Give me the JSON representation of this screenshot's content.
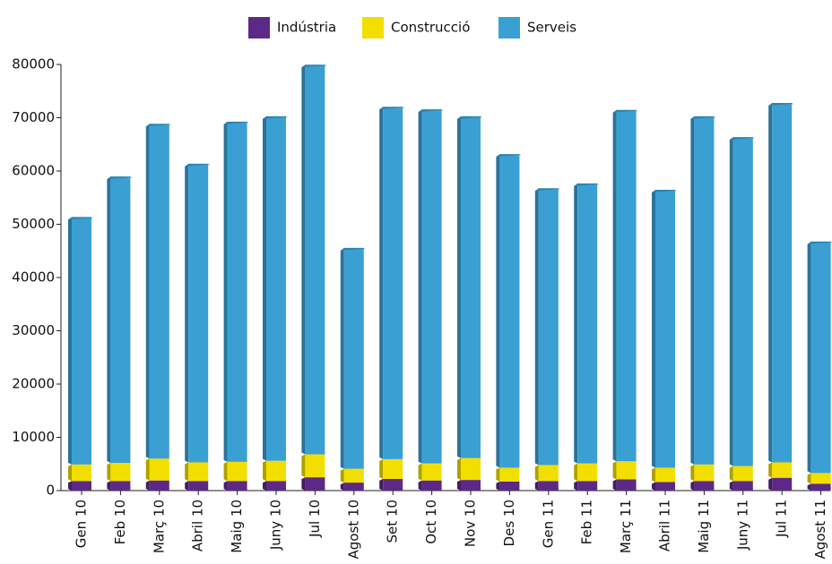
{
  "chart_data": {
    "type": "stacked-bar",
    "categories": [
      "Gen 10",
      "Feb 10",
      "Març 10",
      "Abril 10",
      "Maig 10",
      "Juny 10",
      "Jul 10",
      "Agost 10",
      "Set 10",
      "Oct 10",
      "Nov 10",
      "Des 10",
      "Gen 11",
      "Feb 11",
      "Març 11",
      "Abril 11",
      "Maig 11",
      "Juny 11",
      "Jul 11",
      "Agost 11"
    ],
    "series": [
      {
        "name": "Indústria",
        "color": "#5c2a86",
        "values": [
          1800,
          1800,
          1900,
          1800,
          1800,
          1800,
          2500,
          1500,
          2200,
          1900,
          2000,
          1700,
          1800,
          1800,
          2100,
          1600,
          1800,
          1800,
          2400,
          1300
        ]
      },
      {
        "name": "Construcció",
        "color": "#f2df00",
        "values": [
          3100,
          3400,
          4100,
          3500,
          3600,
          3800,
          4300,
          2600,
          3700,
          3200,
          4100,
          2600,
          3000,
          3300,
          3400,
          2700,
          3100,
          2800,
          2900,
          2000
        ]
      },
      {
        "name": "Serveis",
        "color": "#3aa0d4",
        "values": [
          46300,
          53600,
          62700,
          55900,
          63700,
          64500,
          73000,
          41300,
          66000,
          66300,
          64000,
          58700,
          51800,
          52400,
          65800,
          52000,
          65200,
          61600,
          67300,
          43300
        ]
      }
    ],
    "ylim": [
      0,
      80000
    ],
    "yticks": [
      0,
      10000,
      20000,
      30000,
      40000,
      50000,
      60000,
      70000,
      80000
    ],
    "legend": "top"
  }
}
